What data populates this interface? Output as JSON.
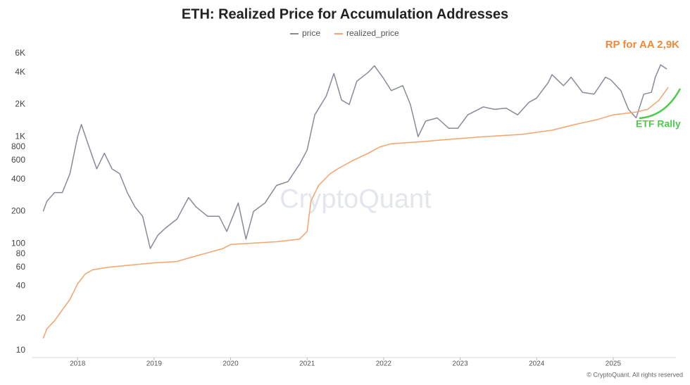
{
  "chart_data": {
    "type": "line",
    "title": "ETH: Realized Price for Accumulation Addresses",
    "log_scale": true,
    "grid": false,
    "legend": "top",
    "watermark": "CryptoQuant",
    "footer": "© CryptoQuant. All rights reserved",
    "annotations": [
      {
        "text": "RP for AA 2,9K",
        "color": "#f0883a"
      },
      {
        "text": "ETF Rally",
        "color": "#4ccb4c"
      }
    ],
    "xlim": [
      2017.4,
      2025.82
    ],
    "xticks": [
      2018,
      2019,
      2020,
      2021,
      2022,
      2023,
      2024,
      2025
    ],
    "ylim": [
      10,
      6000
    ],
    "yticks": [
      10,
      20,
      40,
      60,
      80,
      100,
      200,
      400,
      600,
      800,
      {
        "value": 1000,
        "label": "1K"
      },
      {
        "value": 2000,
        "label": "2K"
      },
      {
        "value": 4000,
        "label": "4K"
      },
      {
        "value": 6000,
        "label": "6K"
      }
    ],
    "series": [
      {
        "name": "price",
        "color": "#878a99",
        "x": [
          2017.55,
          2017.6,
          2017.7,
          2017.8,
          2017.9,
          2018.0,
          2018.05,
          2018.15,
          2018.25,
          2018.35,
          2018.45,
          2018.55,
          2018.65,
          2018.75,
          2018.85,
          2018.95,
          2019.05,
          2019.15,
          2019.3,
          2019.45,
          2019.55,
          2019.7,
          2019.85,
          2019.95,
          2020.1,
          2020.2,
          2020.3,
          2020.45,
          2020.6,
          2020.75,
          2020.9,
          2021.0,
          2021.1,
          2021.25,
          2021.35,
          2021.45,
          2021.55,
          2021.65,
          2021.8,
          2021.88,
          2022.0,
          2022.1,
          2022.25,
          2022.35,
          2022.45,
          2022.55,
          2022.7,
          2022.85,
          2022.97,
          2023.1,
          2023.3,
          2023.45,
          2023.6,
          2023.75,
          2023.9,
          2024.0,
          2024.15,
          2024.2,
          2024.35,
          2024.45,
          2024.6,
          2024.75,
          2024.9,
          2024.97,
          2025.1,
          2025.2,
          2025.3,
          2025.4,
          2025.5,
          2025.55,
          2025.62,
          2025.7
        ],
        "values": [
          200,
          250,
          300,
          300,
          450,
          1000,
          1300,
          800,
          500,
          700,
          500,
          450,
          300,
          220,
          180,
          90,
          120,
          140,
          170,
          270,
          220,
          180,
          180,
          130,
          240,
          110,
          200,
          240,
          350,
          380,
          550,
          750,
          1600,
          2400,
          3900,
          2200,
          2000,
          3300,
          4000,
          4600,
          3500,
          2700,
          3000,
          2000,
          1000,
          1400,
          1500,
          1200,
          1200,
          1600,
          1900,
          1800,
          1850,
          1600,
          2100,
          2300,
          3200,
          3800,
          3000,
          3600,
          2600,
          2500,
          3600,
          3400,
          2700,
          1800,
          1500,
          2500,
          2600,
          3600,
          4700,
          4300
        ]
      },
      {
        "name": "realized_price",
        "color": "#f4a36c",
        "x": [
          2017.55,
          2017.6,
          2017.7,
          2017.8,
          2017.9,
          2018.0,
          2018.1,
          2018.2,
          2018.4,
          2018.6,
          2018.8,
          2019.0,
          2019.3,
          2019.5,
          2019.7,
          2019.9,
          2020.0,
          2020.3,
          2020.6,
          2020.9,
          2021.0,
          2021.05,
          2021.15,
          2021.3,
          2021.4,
          2021.6,
          2021.8,
          2021.95,
          2022.1,
          2022.5,
          2022.9,
          2023.3,
          2023.8,
          2024.2,
          2024.5,
          2024.8,
          2025.0,
          2025.3,
          2025.45,
          2025.6,
          2025.72
        ],
        "values": [
          13,
          16,
          19,
          24,
          30,
          42,
          52,
          57,
          60,
          62,
          64,
          66,
          68,
          75,
          82,
          90,
          98,
          101,
          104,
          110,
          130,
          250,
          350,
          450,
          500,
          600,
          700,
          800,
          860,
          900,
          950,
          1000,
          1050,
          1150,
          1300,
          1450,
          1600,
          1700,
          1800,
          2200,
          2900
        ]
      }
    ]
  }
}
